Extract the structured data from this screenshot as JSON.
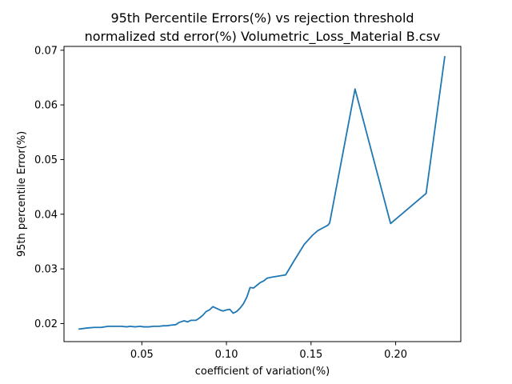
{
  "chart_data": {
    "type": "line",
    "title": "95th Percentile Errors(%) vs rejection threshold",
    "subtitle": "normalized std error(%) Volumetric_Loss_Material B.csv",
    "xlabel": "coefficient of variation(%)",
    "ylabel": "95th percentile Error(%)",
    "xlim": [
      0.004,
      0.2385
    ],
    "ylim": [
      0.0167,
      0.0707
    ],
    "x_ticks": [
      {
        "value": 0.05,
        "label": "0.05"
      },
      {
        "value": 0.1,
        "label": "0.10"
      },
      {
        "value": 0.15,
        "label": "0.15"
      },
      {
        "value": 0.2,
        "label": "0.20"
      }
    ],
    "y_ticks": [
      {
        "value": 0.02,
        "label": "0.02"
      },
      {
        "value": 0.03,
        "label": "0.03"
      },
      {
        "value": 0.04,
        "label": "0.04"
      },
      {
        "value": 0.05,
        "label": "0.05"
      },
      {
        "value": 0.06,
        "label": "0.06"
      },
      {
        "value": 0.07,
        "label": "0.07"
      }
    ],
    "grid": false,
    "series_color": "#1f77b4",
    "series": [
      {
        "x": [
          0.013,
          0.018,
          0.022,
          0.026,
          0.03,
          0.034,
          0.038,
          0.041,
          0.043,
          0.046,
          0.049,
          0.051,
          0.054,
          0.057,
          0.06,
          0.063,
          0.065,
          0.067,
          0.07,
          0.072,
          0.075,
          0.077,
          0.079,
          0.082,
          0.084,
          0.086,
          0.088,
          0.09,
          0.092,
          0.094,
          0.096,
          0.098,
          0.1,
          0.102,
          0.104,
          0.106,
          0.108,
          0.11,
          0.112,
          0.114,
          0.116,
          0.118,
          0.12,
          0.122,
          0.124,
          0.127,
          0.131,
          0.135,
          0.14,
          0.146,
          0.151,
          0.154,
          0.157,
          0.16,
          0.161,
          0.176,
          0.197,
          0.218,
          0.229
        ],
        "y": [
          0.019,
          0.0192,
          0.0193,
          0.0193,
          0.0195,
          0.0195,
          0.0195,
          0.0194,
          0.0195,
          0.0194,
          0.0195,
          0.0194,
          0.0194,
          0.0195,
          0.0195,
          0.0196,
          0.0196,
          0.0197,
          0.0198,
          0.0202,
          0.0205,
          0.0203,
          0.0206,
          0.0206,
          0.021,
          0.0215,
          0.0222,
          0.0225,
          0.0231,
          0.0228,
          0.0225,
          0.0223,
          0.0225,
          0.0226,
          0.0219,
          0.0222,
          0.0228,
          0.0236,
          0.0248,
          0.0266,
          0.0265,
          0.027,
          0.0275,
          0.0278,
          0.0283,
          0.0285,
          0.0287,
          0.0289,
          0.0315,
          0.0345,
          0.0362,
          0.037,
          0.0375,
          0.038,
          0.0384,
          0.0629,
          0.0383,
          0.0438,
          0.0688
        ]
      }
    ]
  }
}
